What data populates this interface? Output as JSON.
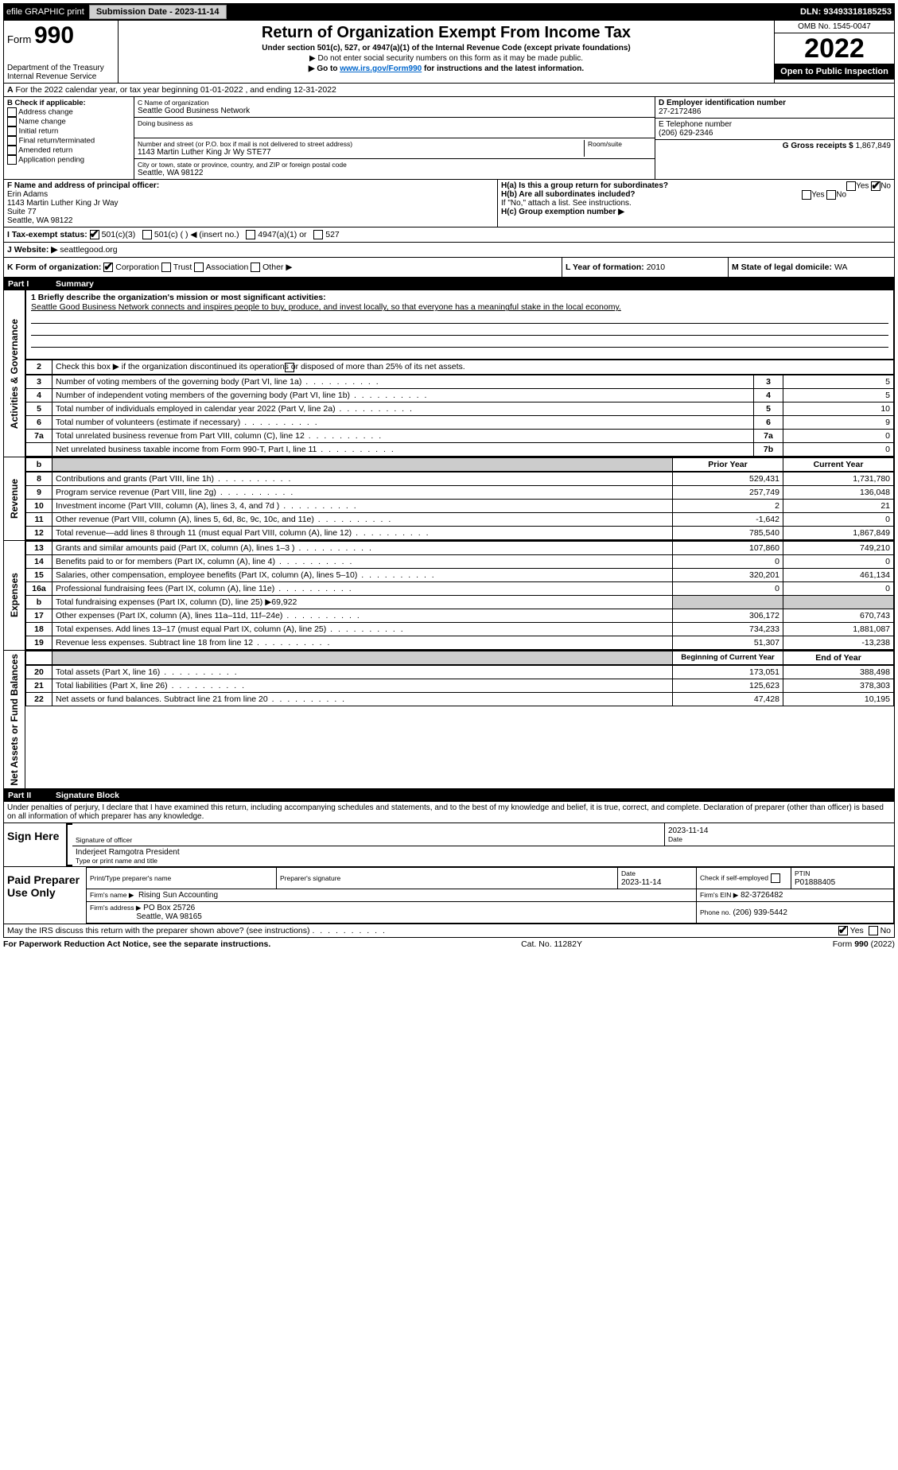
{
  "topbar": {
    "efile": "efile GRAPHIC print",
    "submission_label": "Submission Date - 2023-11-14",
    "dln": "DLN: 93493318185253"
  },
  "header": {
    "form_label": "Form",
    "form_num": "990",
    "dept": "Department of the Treasury",
    "irs": "Internal Revenue Service",
    "title": "Return of Organization Exempt From Income Tax",
    "sub": "Under section 501(c), 527, or 4947(a)(1) of the Internal Revenue Code (except private foundations)",
    "note1": "▶ Do not enter social security numbers on this form as it may be made public.",
    "note2_pre": "▶ Go to ",
    "note2_link": "www.irs.gov/Form990",
    "note2_post": " for instructions and the latest information.",
    "omb": "OMB No. 1545-0047",
    "year": "2022",
    "open": "Open to Public Inspection"
  },
  "A": {
    "text": "For the 2022 calendar year, or tax year beginning 01-01-2022   , and ending 12-31-2022"
  },
  "B": {
    "label": "B Check if applicable:",
    "items": [
      "Address change",
      "Name change",
      "Initial return",
      "Final return/terminated",
      "Amended return",
      "Application pending"
    ]
  },
  "C": {
    "name_label": "C Name of organization",
    "name": "Seattle Good Business Network",
    "dba_label": "Doing business as",
    "street_label": "Number and street (or P.O. box if mail is not delivered to street address)",
    "room_label": "Room/suite",
    "street": "1143 Martin Luther King Jr Wy STE77",
    "city_label": "City or town, state or province, country, and ZIP or foreign postal code",
    "city": "Seattle, WA  98122"
  },
  "D": {
    "label": "D Employer identification number",
    "value": "27-2172486"
  },
  "E": {
    "label": "E Telephone number",
    "value": "(206) 629-2346"
  },
  "G": {
    "label": "G Gross receipts $",
    "value": "1,867,849"
  },
  "F": {
    "label": "F  Name and address of principal officer:",
    "name": "Erin Adams",
    "addr1": "1143 Martin Luther King Jr Way",
    "addr2": "Suite 77",
    "addr3": "Seattle, WA  98122"
  },
  "H": {
    "a": "H(a)  Is this a group return for subordinates?",
    "a_yes": "Yes",
    "a_no": "No",
    "b": "H(b)  Are all subordinates included?",
    "b_note": "If \"No,\" attach a list. See instructions.",
    "c": "H(c)  Group exemption number ▶"
  },
  "I": {
    "label": "I  Tax-exempt status:",
    "opts": [
      "501(c)(3)",
      "501(c) (  ) ◀ (insert no.)",
      "4947(a)(1) or",
      "527"
    ]
  },
  "J": {
    "label": "J  Website: ▶",
    "value": "seattlegood.org"
  },
  "K": {
    "label": "K Form of organization:",
    "opts": [
      "Corporation",
      "Trust",
      "Association",
      "Other ▶"
    ]
  },
  "L": {
    "label": "L Year of formation:",
    "value": "2010"
  },
  "M": {
    "label": "M State of legal domicile:",
    "value": "WA"
  },
  "parts": {
    "p1": {
      "num": "Part I",
      "title": "Summary"
    },
    "p2": {
      "num": "Part II",
      "title": "Signature Block"
    }
  },
  "mission": {
    "label": "1 Briefly describe the organization's mission or most significant activities:",
    "text": "Seattle Good Business Network connects and inspires people to buy, produce, and invest locally, so that everyone has a meaningful stake in the local economy."
  },
  "gov": {
    "l2": "Check this box ▶       if the organization discontinued its operations or disposed of more than 25% of its net assets.",
    "rows": [
      {
        "n": "3",
        "t": "Number of voting members of the governing body (Part VI, line 1a)",
        "box": "3",
        "v": "5"
      },
      {
        "n": "4",
        "t": "Number of independent voting members of the governing body (Part VI, line 1b)",
        "box": "4",
        "v": "5"
      },
      {
        "n": "5",
        "t": "Total number of individuals employed in calendar year 2022 (Part V, line 2a)",
        "box": "5",
        "v": "10"
      },
      {
        "n": "6",
        "t": "Total number of volunteers (estimate if necessary)",
        "box": "6",
        "v": "9"
      },
      {
        "n": "7a",
        "t": "Total unrelated business revenue from Part VIII, column (C), line 12",
        "box": "7a",
        "v": "0"
      },
      {
        "n": "",
        "t": "Net unrelated business taxable income from Form 990-T, Part I, line 11",
        "box": "7b",
        "v": "0"
      }
    ]
  },
  "rev_header": {
    "prior": "Prior Year",
    "current": "Current Year"
  },
  "revenue": [
    {
      "n": "8",
      "t": "Contributions and grants (Part VIII, line 1h)",
      "p": "529,431",
      "c": "1,731,780"
    },
    {
      "n": "9",
      "t": "Program service revenue (Part VIII, line 2g)",
      "p": "257,749",
      "c": "136,048"
    },
    {
      "n": "10",
      "t": "Investment income (Part VIII, column (A), lines 3, 4, and 7d )",
      "p": "2",
      "c": "21"
    },
    {
      "n": "11",
      "t": "Other revenue (Part VIII, column (A), lines 5, 6d, 8c, 9c, 10c, and 11e)",
      "p": "-1,642",
      "c": "0"
    },
    {
      "n": "12",
      "t": "Total revenue—add lines 8 through 11 (must equal Part VIII, column (A), line 12)",
      "p": "785,540",
      "c": "1,867,849"
    }
  ],
  "expenses": [
    {
      "n": "13",
      "t": "Grants and similar amounts paid (Part IX, column (A), lines 1–3 )",
      "p": "107,860",
      "c": "749,210"
    },
    {
      "n": "14",
      "t": "Benefits paid to or for members (Part IX, column (A), line 4)",
      "p": "0",
      "c": "0"
    },
    {
      "n": "15",
      "t": "Salaries, other compensation, employee benefits (Part IX, column (A), lines 5–10)",
      "p": "320,201",
      "c": "461,134"
    },
    {
      "n": "16a",
      "t": "Professional fundraising fees (Part IX, column (A), line 11e)",
      "p": "0",
      "c": "0"
    },
    {
      "n": "b",
      "t": "Total fundraising expenses (Part IX, column (D), line 25) ▶69,922",
      "p": "",
      "c": "",
      "shade": true
    },
    {
      "n": "17",
      "t": "Other expenses (Part IX, column (A), lines 11a–11d, 11f–24e)",
      "p": "306,172",
      "c": "670,743"
    },
    {
      "n": "18",
      "t": "Total expenses. Add lines 13–17 (must equal Part IX, column (A), line 25)",
      "p": "734,233",
      "c": "1,881,087"
    },
    {
      "n": "19",
      "t": "Revenue less expenses. Subtract line 18 from line 12",
      "p": "51,307",
      "c": "-13,238"
    }
  ],
  "net_header": {
    "begin": "Beginning of Current Year",
    "end": "End of Year"
  },
  "net": [
    {
      "n": "20",
      "t": "Total assets (Part X, line 16)",
      "p": "173,051",
      "c": "388,498"
    },
    {
      "n": "21",
      "t": "Total liabilities (Part X, line 26)",
      "p": "125,623",
      "c": "378,303"
    },
    {
      "n": "22",
      "t": "Net assets or fund balances. Subtract line 21 from line 20",
      "p": "47,428",
      "c": "10,195"
    }
  ],
  "tabs": {
    "gov": "Activities & Governance",
    "rev": "Revenue",
    "exp": "Expenses",
    "net": "Net Assets or Fund Balances"
  },
  "sig": {
    "penalties": "Under penalties of perjury, I declare that I have examined this return, including accompanying schedules and statements, and to the best of my knowledge and belief, it is true, correct, and complete. Declaration of preparer (other than officer) is based on all information of which preparer has any knowledge.",
    "sign_here": "Sign Here",
    "sig_officer": "Signature of officer",
    "date_label": "Date",
    "date": "2023-11-14",
    "officer_name": "Inderjeet Ramgotra  President",
    "type_label": "Type or print name and title",
    "paid": "Paid Preparer Use Only",
    "prep_name_label": "Print/Type preparer's name",
    "prep_sig_label": "Preparer's signature",
    "prep_date_label": "Date",
    "prep_date": "2023-11-14",
    "self_emp": "Check        if self-employed",
    "ptin_label": "PTIN",
    "ptin": "P01888405",
    "firm_name_label": "Firm's name    ▶",
    "firm_name": "Rising Sun Accounting",
    "firm_ein_label": "Firm's EIN ▶",
    "firm_ein": "82-3726482",
    "firm_addr_label": "Firm's address ▶",
    "firm_addr1": "PO Box 25726",
    "firm_addr2": "Seattle, WA  98165",
    "phone_label": "Phone no.",
    "phone": "(206) 939-5442",
    "discuss": "May the IRS discuss this return with the preparer shown above? (see instructions)",
    "yes": "Yes",
    "no": "No"
  },
  "footer": {
    "left": "For Paperwork Reduction Act Notice, see the separate instructions.",
    "mid": "Cat. No. 11282Y",
    "right": "Form 990 (2022)"
  }
}
